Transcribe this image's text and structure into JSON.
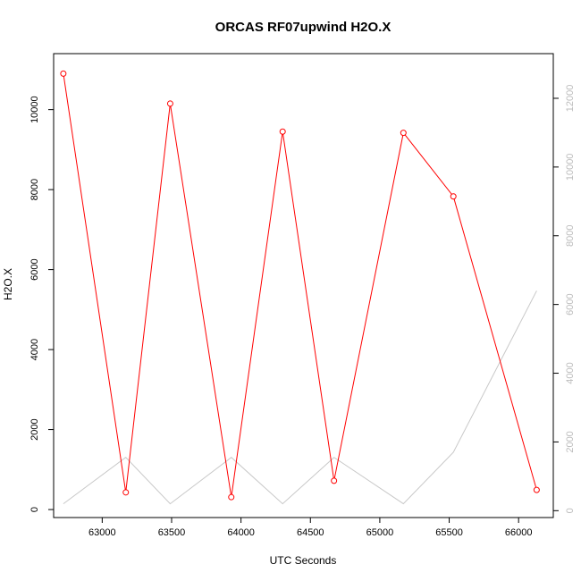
{
  "chart_data": {
    "type": "line",
    "title": "ORCAS RF07upwind H2O.X",
    "xlabel": "UTC Seconds",
    "ylabel": "H2O.X",
    "xlim": [
      62650,
      66250
    ],
    "ylim": [
      -200,
      11400
    ],
    "y2lim": [
      -200,
      13300
    ],
    "x_ticks": [
      63000,
      63500,
      64000,
      64500,
      65000,
      65500,
      66000
    ],
    "y_ticks": [
      0,
      2000,
      4000,
      6000,
      8000,
      10000
    ],
    "y2_ticks": [
      0,
      2000,
      4000,
      6000,
      8000,
      10000,
      12000
    ],
    "colors": {
      "primary": "#ff0000",
      "secondary": "#c8c8c8",
      "right_axis_text": "#bdbdbd"
    },
    "series": [
      {
        "axis": "left",
        "marker": "circle",
        "x": [
          62720,
          63170,
          63490,
          63930,
          64300,
          64670,
          65170,
          65530,
          66130
        ],
        "values": [
          10900,
          430,
          10150,
          310,
          9450,
          720,
          9420,
          7830,
          490
        ]
      },
      {
        "axis": "right",
        "marker": "none",
        "x": [
          62720,
          63170,
          63490,
          63930,
          64300,
          64670,
          65170,
          65530,
          66130
        ],
        "values": [
          200,
          1550,
          200,
          1550,
          200,
          1550,
          200,
          1700,
          6400
        ]
      }
    ]
  }
}
